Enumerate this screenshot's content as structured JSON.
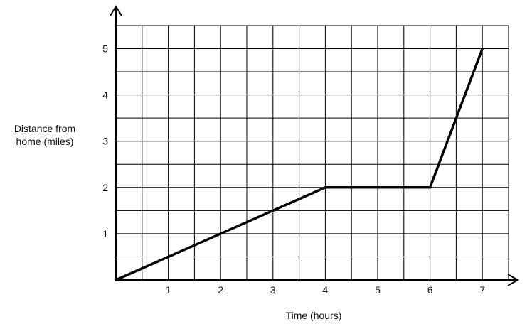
{
  "chart_data": {
    "type": "line",
    "title": "",
    "xlabel": "Time (hours)",
    "ylabel_lines": [
      "Distance from",
      "home (miles)"
    ],
    "x_ticks": [
      "1",
      "2",
      "3",
      "4",
      "5",
      "6",
      "7"
    ],
    "y_ticks": [
      "1",
      "2",
      "3",
      "4",
      "5"
    ],
    "xlim": [
      0,
      7.5
    ],
    "ylim": [
      0,
      5.5
    ],
    "grid": true,
    "grid_step": 0.5,
    "series": [
      {
        "x": [
          0,
          4,
          6,
          7
        ],
        "y": [
          0,
          2,
          2,
          5
        ]
      }
    ]
  }
}
